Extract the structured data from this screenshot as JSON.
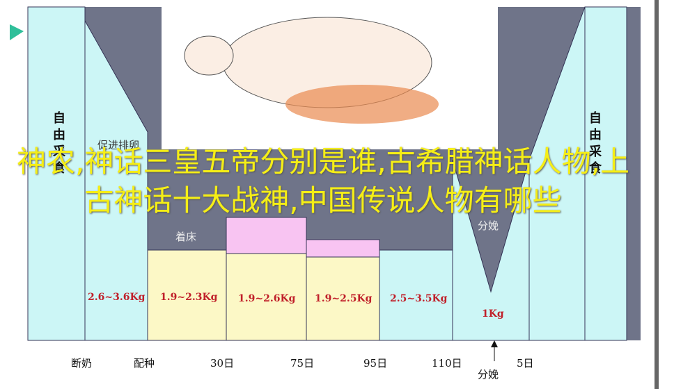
{
  "overlay_title": "神农,神话三皇五帝分别是谁,古希腊神话人物,上古神话十大战神,中国传说人物有哪些",
  "diagram": {
    "side_labels": [
      "自由采食",
      "自由采食"
    ],
    "phase_labels": [
      "促进排卵",
      "着床",
      "分娩"
    ],
    "weights": [
      "2.6~3.6Kg",
      "1.9~2.3Kg",
      "1.9~2.6Kg",
      "1.9~2.5Kg",
      "2.5~3.5Kg",
      "1Kg"
    ],
    "axis_labels": [
      "断奶",
      "配种",
      "30日",
      "75日",
      "95日",
      "110日",
      "分娩",
      "5日"
    ]
  }
}
